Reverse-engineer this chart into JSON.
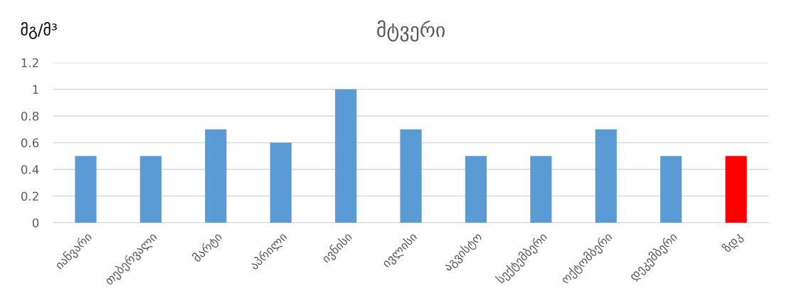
{
  "chart_data": {
    "type": "bar",
    "title": "მტვერი",
    "ylabel": "მგ/მ³",
    "categories": [
      "იანვარი",
      "თებერვალი",
      "მარტი",
      "აპრილი",
      "ივნისი",
      "ივლისი",
      "აგვისტო",
      "სექტემბერი",
      "ოქტომბერი",
      "დეკემბერი",
      "ზდკ"
    ],
    "values": [
      0.5,
      0.5,
      0.7,
      0.6,
      1,
      0.7,
      0.5,
      0.5,
      0.7,
      0.5,
      0.5
    ],
    "colors": [
      "#5b9bd5",
      "#5b9bd5",
      "#5b9bd5",
      "#5b9bd5",
      "#5b9bd5",
      "#5b9bd5",
      "#5b9bd5",
      "#5b9bd5",
      "#5b9bd5",
      "#5b9bd5",
      "#ff0000"
    ],
    "ylim": [
      0,
      1.2
    ],
    "yticks": [
      0,
      0.2,
      0.4,
      0.6,
      0.8,
      1,
      1.2
    ],
    "grid": "y"
  }
}
